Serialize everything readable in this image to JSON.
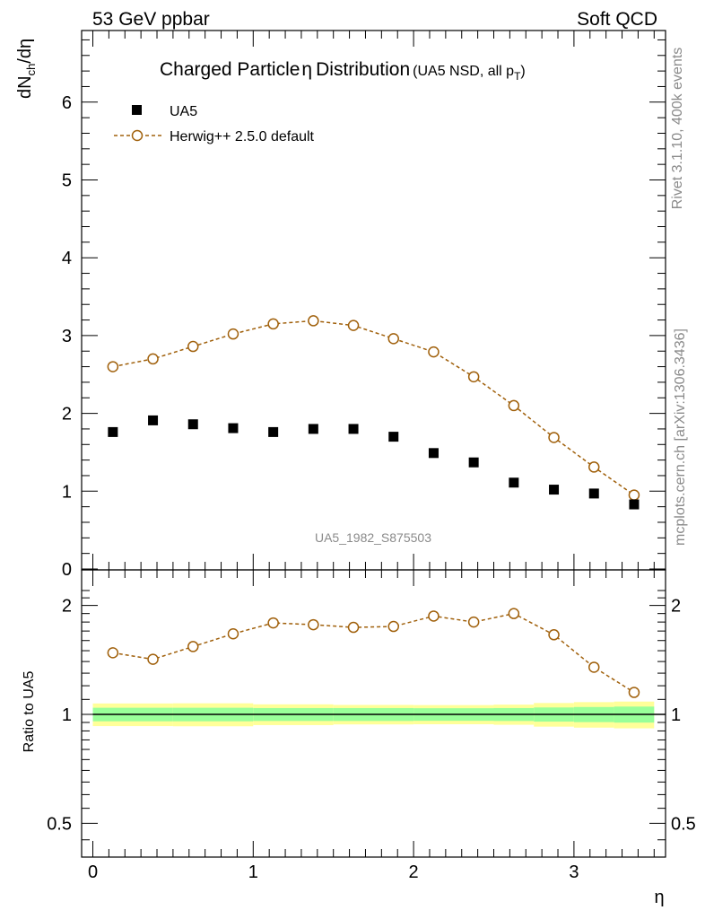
{
  "header": {
    "energy_label": "53 GeV ppbar",
    "category_label": "Soft QCD"
  },
  "side_labels": {
    "rivet": "Rivet 3.1.10,  400k events",
    "mcplots": "mcplots.cern.ch [arXiv:1306.3436]"
  },
  "title": {
    "main": "Charged Particle",
    "eta": "η",
    "main2": "Distribution",
    "sub": "(UA5 NSD, all p",
    "sub_sub": "T",
    "sub_close": ")"
  },
  "legend": {
    "data_label": "UA5",
    "mc_label": "Herwig++ 2.5.0 default"
  },
  "analysis_id": "UA5_1982_S875503",
  "axes": {
    "y_main": {
      "base": "dN",
      "sub": "ch",
      "tail": "/dη"
    },
    "y_ratio": "Ratio to UA5",
    "x": "η"
  },
  "colors": {
    "data": "#000000",
    "mc": "#a0600b",
    "band_inner": "#99ff99",
    "band_outer": "#ffff99"
  },
  "chart_data": [
    {
      "type": "scatter",
      "title": "Charged Particle η Distribution (UA5 NSD, all pT)",
      "xlabel": "η",
      "ylabel": "dNch/dη",
      "xlim": [
        -0.07,
        3.55
      ],
      "ylim": [
        0,
        7
      ],
      "y_ticks": [
        "0",
        "1",
        "2",
        "3",
        "4",
        "5",
        "6"
      ],
      "x": [
        0.125,
        0.375,
        0.625,
        0.875,
        1.125,
        1.375,
        1.625,
        1.875,
        2.125,
        2.375,
        2.625,
        2.875,
        3.125,
        3.375
      ],
      "series": [
        {
          "name": "UA5",
          "marker": "filled-square",
          "values": [
            1.76,
            1.91,
            1.86,
            1.81,
            1.76,
            1.8,
            1.8,
            1.7,
            1.49,
            1.37,
            1.11,
            1.02,
            0.97,
            0.83
          ]
        },
        {
          "name": "Herwig++ 2.5.0 default",
          "marker": "open-circle",
          "line": "dashed",
          "values": [
            2.6,
            2.7,
            2.86,
            3.02,
            3.15,
            3.19,
            3.13,
            2.96,
            2.79,
            2.47,
            2.1,
            1.69,
            1.31,
            0.95
          ]
        }
      ]
    },
    {
      "type": "line",
      "title": "",
      "xlabel": "η",
      "ylabel": "Ratio to UA5",
      "xlim": [
        -0.07,
        3.55
      ],
      "ylim": [
        0.41,
        2.3
      ],
      "y_scale": "log",
      "y_ticks": [
        "0.5",
        "1",
        "2"
      ],
      "x_ticks": [
        "0",
        "1",
        "2",
        "3"
      ],
      "x": [
        0.125,
        0.375,
        0.625,
        0.875,
        1.125,
        1.375,
        1.625,
        1.875,
        2.125,
        2.375,
        2.625,
        2.875,
        3.125,
        3.375
      ],
      "series": [
        {
          "name": "Herwig++ 2.5.0 default",
          "marker": "open-circle",
          "line": "dashed",
          "values": [
            1.48,
            1.42,
            1.54,
            1.67,
            1.79,
            1.77,
            1.74,
            1.75,
            1.87,
            1.8,
            1.9,
            1.66,
            1.35,
            1.15
          ]
        }
      ],
      "bands": {
        "edges": [
          0,
          0.5,
          1.0,
          1.5,
          2.0,
          2.5,
          2.75,
          3.0,
          3.25,
          3.5
        ],
        "inner_rel": [
          0.043,
          0.043,
          0.041,
          0.041,
          0.04,
          0.041,
          0.045,
          0.048,
          0.051,
          0.083
        ],
        "outer_rel": [
          0.072,
          0.073,
          0.066,
          0.062,
          0.061,
          0.064,
          0.075,
          0.081,
          0.085,
          0.14
        ]
      },
      "reference_line": 1
    }
  ]
}
